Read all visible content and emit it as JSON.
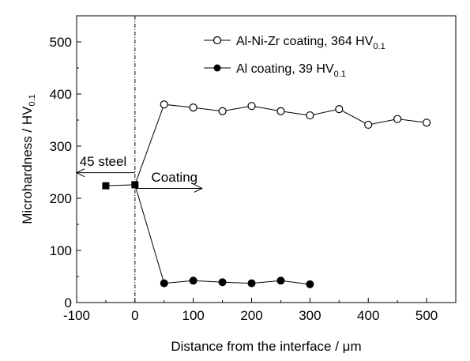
{
  "chart_data": {
    "type": "line",
    "xlabel": "Distance from the interface / μm",
    "ylabel": "Microhardness / HV",
    "ylabel_sub": "0.1",
    "xlim": [
      -100,
      550
    ],
    "ylim": [
      0,
      550
    ],
    "xticks": [
      -100,
      0,
      100,
      200,
      300,
      400,
      500
    ],
    "yticks": [
      0,
      100,
      200,
      300,
      400,
      500
    ],
    "grid": false,
    "legend_position": "top-right",
    "interface_line_x": 0,
    "series": [
      {
        "name": "Al-Ni-Zr coating,  364 HV",
        "name_sub": "0.1",
        "marker": "open-circle",
        "x": [
          0,
          50,
          100,
          150,
          200,
          250,
          300,
          350,
          400,
          450,
          500
        ],
        "y": [
          226,
          380,
          374,
          367,
          377,
          367,
          359,
          371,
          341,
          352,
          345
        ]
      },
      {
        "name": "Al coating, 39 HV",
        "name_sub": "0.1",
        "marker": "filled-circle",
        "x": [
          0,
          50,
          100,
          150,
          200,
          250,
          300
        ],
        "y": [
          226,
          37,
          42,
          39,
          37,
          42,
          35
        ]
      },
      {
        "name": "",
        "marker": "filled-square",
        "x": [
          -50,
          0
        ],
        "y": [
          224,
          226
        ]
      }
    ],
    "annotations": [
      {
        "text": "45 steel",
        "direction": "left",
        "x_from": 0,
        "x_to": -100,
        "y": 249,
        "label_x": -95,
        "label_y": 262
      },
      {
        "text": "Coating",
        "direction": "right",
        "x_from": 0,
        "x_to": 115,
        "y": 219,
        "label_x": 28,
        "label_y": 232
      }
    ]
  }
}
